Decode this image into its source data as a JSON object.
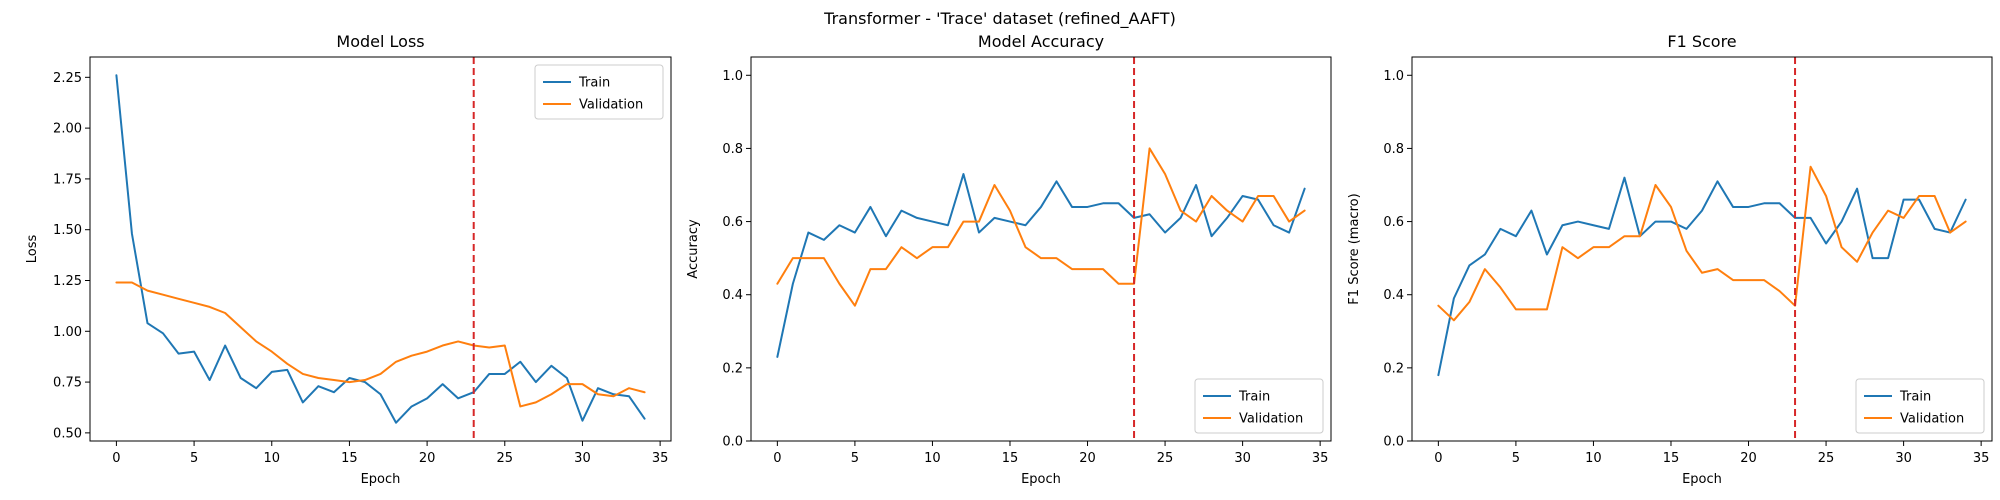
{
  "figure": {
    "title": "Transformer - 'Trace' dataset (refined_AAFT)"
  },
  "colors": {
    "train": "#1f77b4",
    "validation": "#ff7f0e",
    "marker": "#d62728"
  },
  "chart_data": [
    {
      "type": "line",
      "title": "Model Loss",
      "xlabel": "Epoch",
      "ylabel": "Loss",
      "xlim": [
        -1.7,
        35.7
      ],
      "ylim": [
        0.46,
        2.35
      ],
      "xticks": [
        0,
        5,
        10,
        15,
        20,
        25,
        30,
        35
      ],
      "xtick_labels": [
        "0",
        "5",
        "10",
        "15",
        "20",
        "25",
        "30",
        "35"
      ],
      "yticks": [
        0.5,
        0.75,
        1.0,
        1.25,
        1.5,
        1.75,
        2.0,
        2.25
      ],
      "ytick_labels": [
        "0.50",
        "0.75",
        "1.00",
        "1.25",
        "1.50",
        "1.75",
        "2.00",
        "2.25"
      ],
      "vline_x": 23,
      "legend_position": "upper right",
      "x": [
        0,
        1,
        2,
        3,
        4,
        5,
        6,
        7,
        8,
        9,
        10,
        11,
        12,
        13,
        14,
        15,
        16,
        17,
        18,
        19,
        20,
        21,
        22,
        23,
        24,
        25,
        26,
        27,
        28,
        29,
        30,
        31,
        32,
        33,
        34
      ],
      "series": [
        {
          "name": "Train",
          "values": [
            2.26,
            1.48,
            1.04,
            0.99,
            0.89,
            0.9,
            0.76,
            0.93,
            0.77,
            0.72,
            0.8,
            0.81,
            0.65,
            0.73,
            0.7,
            0.77,
            0.75,
            0.69,
            0.55,
            0.63,
            0.67,
            0.74,
            0.67,
            0.7,
            0.79,
            0.79,
            0.85,
            0.75,
            0.83,
            0.77,
            0.56,
            0.72,
            0.69,
            0.68,
            0.57
          ]
        },
        {
          "name": "Validation",
          "values": [
            1.24,
            1.24,
            1.2,
            1.18,
            1.16,
            1.14,
            1.12,
            1.09,
            1.02,
            0.95,
            0.9,
            0.84,
            0.79,
            0.77,
            0.76,
            0.75,
            0.76,
            0.79,
            0.85,
            0.88,
            0.9,
            0.93,
            0.95,
            0.93,
            0.92,
            0.93,
            0.63,
            0.65,
            0.69,
            0.74,
            0.74,
            0.69,
            0.68,
            0.72,
            0.7
          ]
        }
      ]
    },
    {
      "type": "line",
      "title": "Model Accuracy",
      "xlabel": "Epoch",
      "ylabel": "Accuracy",
      "xlim": [
        -1.7,
        35.7
      ],
      "ylim": [
        0.0,
        1.05
      ],
      "xticks": [
        0,
        5,
        10,
        15,
        20,
        25,
        30,
        35
      ],
      "xtick_labels": [
        "0",
        "5",
        "10",
        "15",
        "20",
        "25",
        "30",
        "35"
      ],
      "yticks": [
        0.0,
        0.2,
        0.4,
        0.6,
        0.8,
        1.0
      ],
      "ytick_labels": [
        "0.0",
        "0.2",
        "0.4",
        "0.6",
        "0.8",
        "1.0"
      ],
      "vline_x": 23,
      "legend_position": "lower right",
      "x": [
        0,
        1,
        2,
        3,
        4,
        5,
        6,
        7,
        8,
        9,
        10,
        11,
        12,
        13,
        14,
        15,
        16,
        17,
        18,
        19,
        20,
        21,
        22,
        23,
        24,
        25,
        26,
        27,
        28,
        29,
        30,
        31,
        32,
        33,
        34
      ],
      "series": [
        {
          "name": "Train",
          "values": [
            0.23,
            0.43,
            0.57,
            0.55,
            0.59,
            0.57,
            0.64,
            0.56,
            0.63,
            0.61,
            0.6,
            0.59,
            0.73,
            0.57,
            0.61,
            0.6,
            0.59,
            0.64,
            0.71,
            0.64,
            0.64,
            0.65,
            0.65,
            0.61,
            0.62,
            0.57,
            0.61,
            0.7,
            0.56,
            0.61,
            0.67,
            0.66,
            0.59,
            0.57,
            0.69
          ]
        },
        {
          "name": "Validation",
          "values": [
            0.43,
            0.5,
            0.5,
            0.5,
            0.43,
            0.37,
            0.47,
            0.47,
            0.53,
            0.5,
            0.53,
            0.53,
            0.6,
            0.6,
            0.7,
            0.63,
            0.53,
            0.5,
            0.5,
            0.47,
            0.47,
            0.47,
            0.43,
            0.43,
            0.8,
            0.73,
            0.63,
            0.6,
            0.67,
            0.63,
            0.6,
            0.67,
            0.67,
            0.6,
            0.63
          ]
        }
      ]
    },
    {
      "type": "line",
      "title": "F1 Score",
      "xlabel": "Epoch",
      "ylabel": "F1 Score (macro)",
      "xlim": [
        -1.7,
        35.7
      ],
      "ylim": [
        0.0,
        1.05
      ],
      "xticks": [
        0,
        5,
        10,
        15,
        20,
        25,
        30,
        35
      ],
      "xtick_labels": [
        "0",
        "5",
        "10",
        "15",
        "20",
        "25",
        "30",
        "35"
      ],
      "yticks": [
        0.0,
        0.2,
        0.4,
        0.6,
        0.8,
        1.0
      ],
      "ytick_labels": [
        "0.0",
        "0.2",
        "0.4",
        "0.6",
        "0.8",
        "1.0"
      ],
      "vline_x": 23,
      "legend_position": "lower right",
      "x": [
        0,
        1,
        2,
        3,
        4,
        5,
        6,
        7,
        8,
        9,
        10,
        11,
        12,
        13,
        14,
        15,
        16,
        17,
        18,
        19,
        20,
        21,
        22,
        23,
        24,
        25,
        26,
        27,
        28,
        29,
        30,
        31,
        32,
        33,
        34
      ],
      "series": [
        {
          "name": "Train",
          "values": [
            0.18,
            0.39,
            0.48,
            0.51,
            0.58,
            0.56,
            0.63,
            0.51,
            0.59,
            0.6,
            0.59,
            0.58,
            0.72,
            0.56,
            0.6,
            0.6,
            0.58,
            0.63,
            0.71,
            0.64,
            0.64,
            0.65,
            0.65,
            0.61,
            0.61,
            0.54,
            0.6,
            0.69,
            0.5,
            0.5,
            0.66,
            0.66,
            0.58,
            0.57,
            0.66
          ]
        },
        {
          "name": "Validation",
          "values": [
            0.37,
            0.33,
            0.38,
            0.47,
            0.42,
            0.36,
            0.36,
            0.36,
            0.53,
            0.5,
            0.53,
            0.53,
            0.56,
            0.56,
            0.7,
            0.64,
            0.52,
            0.46,
            0.47,
            0.44,
            0.44,
            0.44,
            0.41,
            0.37,
            0.75,
            0.67,
            0.53,
            0.49,
            0.57,
            0.63,
            0.61,
            0.67,
            0.67,
            0.57,
            0.6
          ]
        }
      ]
    }
  ]
}
